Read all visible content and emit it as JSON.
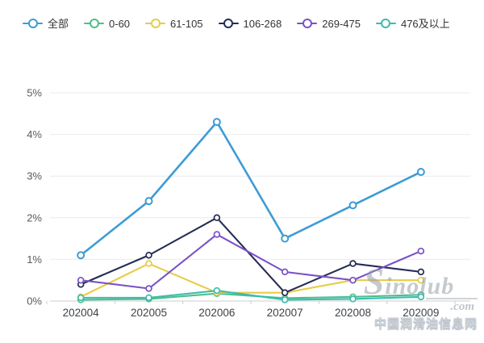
{
  "chart_data": {
    "type": "line",
    "categories": [
      "202004",
      "202005",
      "202006",
      "202007",
      "202008",
      "202009"
    ],
    "series": [
      {
        "name": "全部",
        "color": "#3e9bd5",
        "values": [
          1.1,
          2.4,
          4.3,
          1.5,
          2.3,
          3.1
        ]
      },
      {
        "name": "0-60",
        "color": "#4ebe8c",
        "values": [
          0.03,
          0.05,
          0.18,
          0.07,
          0.1,
          0.15
        ]
      },
      {
        "name": "61-105",
        "color": "#e7cc48",
        "values": [
          0.1,
          0.9,
          0.2,
          0.2,
          0.5,
          0.5
        ]
      },
      {
        "name": "106-268",
        "color": "#252c55",
        "values": [
          0.4,
          1.1,
          2.0,
          0.2,
          0.9,
          0.7
        ]
      },
      {
        "name": "269-475",
        "color": "#7a52c6",
        "values": [
          0.5,
          0.3,
          1.6,
          0.7,
          0.5,
          1.2
        ]
      },
      {
        "name": "476及以上",
        "color": "#3dbcae",
        "values": [
          0.08,
          0.08,
          0.25,
          0.03,
          0.05,
          0.1
        ]
      }
    ],
    "ytick_labels": [
      "0%",
      "1%",
      "2%",
      "3%",
      "4%",
      "5%"
    ],
    "ylim": [
      0,
      5
    ],
    "grid": true,
    "legend_position": "top",
    "marker": "hollow-circle",
    "grid_color": "#ebebeb",
    "axis_color": "#c9ccd0"
  },
  "watermark": {
    "brand": "Sinolub",
    "domain_suffix": ".com",
    "site_name": "中国润滑油信息网"
  }
}
